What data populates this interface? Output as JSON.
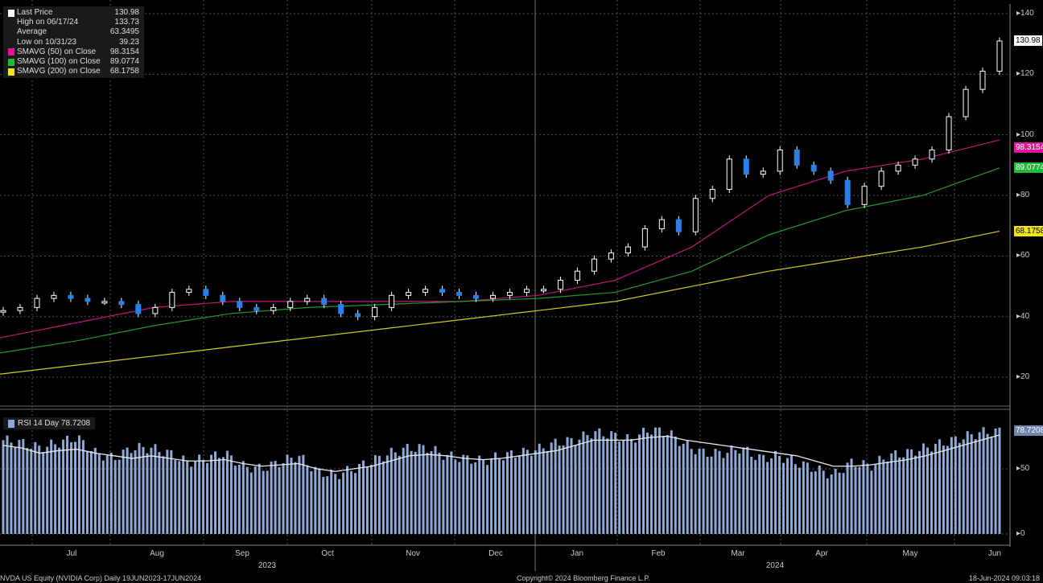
{
  "chart_data": [
    {
      "type": "candlestick",
      "ticker": "NVDA US Equity (NVIDIA Corp)",
      "period": "Daily 19JUN2023-17JUN2024",
      "ylim": [
        10,
        145
      ],
      "yticks": [
        20,
        40,
        60,
        80,
        100,
        120,
        140
      ],
      "months": [
        "Jul",
        "Aug",
        "Sep",
        "Oct",
        "Nov",
        "Dec",
        "Jan",
        "Feb",
        "Mar",
        "Apr",
        "May",
        "Jun"
      ],
      "years": [
        "2023",
        "2024"
      ],
      "closes": [
        42,
        43,
        46,
        47,
        46,
        45,
        45,
        44,
        41,
        43,
        48,
        49,
        47,
        45,
        43,
        42,
        43,
        45,
        46,
        44,
        41,
        40,
        43,
        47,
        48,
        49,
        48,
        47,
        46,
        47,
        48,
        49,
        49,
        52,
        55,
        59,
        61,
        63,
        69,
        72,
        68,
        79,
        82,
        92,
        87,
        88,
        95,
        90,
        88,
        85,
        77,
        83,
        88,
        90,
        92,
        95,
        106,
        115,
        121,
        130.98
      ],
      "legend": [
        {
          "name": "Last Price",
          "value": "130.98",
          "color": "#ffffff"
        },
        {
          "name": "High on 06/17/24",
          "value": "133.73",
          "color": "#aaaaaa"
        },
        {
          "name": "Average",
          "value": "63.3495",
          "color": "#aaaaaa"
        },
        {
          "name": "Low on 10/31/23",
          "value": "39.23",
          "color": "#aaaaaa"
        },
        {
          "name": "SMAVG (50)  on Close",
          "value": "98.3154",
          "color": "#e0159a"
        },
        {
          "name": "SMAVG (100)  on Close",
          "value": "89.0774",
          "color": "#22b83a"
        },
        {
          "name": "SMAVG (200)  on Close",
          "value": "68.1758",
          "color": "#f2e51e"
        }
      ],
      "sma": [
        {
          "name": "SMAVG (50)",
          "color": "#c0157e",
          "values": [
            33,
            38,
            43,
            45,
            45,
            45,
            45,
            47,
            52,
            63,
            80,
            88,
            92,
            98.3154
          ]
        },
        {
          "name": "SMAVG (100)",
          "color": "#1f9a33",
          "values": [
            28,
            32,
            37,
            41,
            43,
            44,
            45,
            46,
            48,
            55,
            67,
            75,
            80,
            89.0774
          ]
        },
        {
          "name": "SMAVG (200)",
          "color": "#d8cc1a",
          "values": [
            21,
            24,
            27,
            30,
            33,
            36,
            39,
            42,
            45,
            50,
            55,
            59,
            63,
            68.1758
          ]
        }
      ],
      "last_price_tag": "130.98"
    },
    {
      "type": "bar",
      "title": "RSI 14 Day",
      "last": "78.7208",
      "ylim": [
        0,
        100
      ],
      "yticks": [
        0,
        50
      ],
      "values": [
        72,
        70,
        66,
        70,
        74,
        62,
        58,
        66,
        66,
        62,
        55,
        58,
        62,
        52,
        50,
        55,
        60,
        48,
        45,
        50,
        56,
        62,
        66,
        66,
        60,
        58,
        56,
        60,
        62,
        65,
        70,
        72,
        78,
        76,
        72,
        80,
        78,
        68,
        62,
        62,
        66,
        58,
        60,
        55,
        50,
        45,
        55,
        52,
        60,
        62,
        66,
        70,
        74,
        78,
        78.7208
      ],
      "ma_values": [
        68,
        66,
        62,
        64,
        65,
        62,
        60,
        58,
        60,
        58,
        56,
        56,
        57,
        54,
        52,
        53,
        54,
        50,
        48,
        50,
        52,
        56,
        60,
        61,
        60,
        58,
        57,
        58,
        60,
        62,
        64,
        68,
        72,
        72,
        72,
        74,
        75,
        72,
        70,
        68,
        66,
        64,
        62,
        60,
        56,
        52,
        52,
        53,
        55,
        57,
        60,
        64,
        68,
        72,
        76
      ]
    }
  ],
  "footer": {
    "left": "NVDA US Equity (NVIDIA Corp)  Daily 19JUN2023-17JUN2024",
    "center": "Copyright© 2024 Bloomberg Finance L.P.",
    "right": "18-Jun-2024 09:03:18"
  }
}
